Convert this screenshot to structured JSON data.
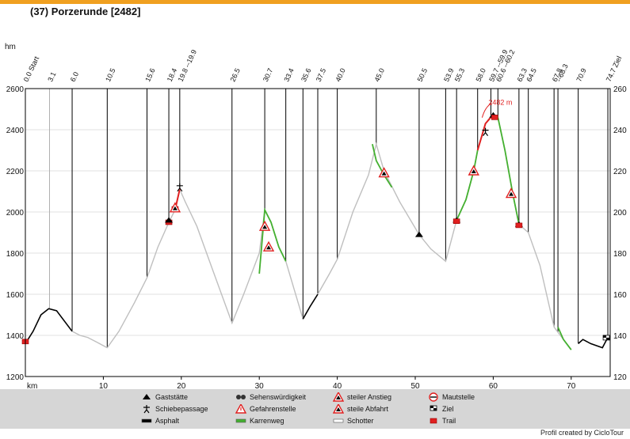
{
  "title": "(37) Porzerunde [2482]",
  "credit": "Profil created by CicloTour",
  "chart_data": {
    "type": "line",
    "title": "(37) Porzerunde [2482]",
    "ylabel": "hm",
    "xlabel": "km",
    "xlim": [
      0,
      75
    ],
    "ylim": [
      1200,
      2600
    ],
    "x_ticks": [
      "10",
      "20",
      "30",
      "40",
      "50",
      "60",
      "70"
    ],
    "y_ticks": [
      "1200",
      "1400",
      "1600",
      "1800",
      "2000",
      "2200",
      "2400",
      "2600"
    ],
    "y_ticks_right": [
      "120",
      "140",
      "160",
      "180",
      "200",
      "220",
      "240",
      "260"
    ],
    "km_marks": [
      "0.0 Start",
      "3.1",
      "6.0",
      "10.5",
      "15.6",
      "18.4",
      "19.8 --19.9",
      "26.5",
      "30.7",
      "33.4",
      "35.6",
      "37.5",
      "40.0",
      "45.0",
      "50.5",
      "53.9",
      "55.3",
      "58.0",
      "59.7 --59.9",
      "60.6 --60.2",
      "63.3",
      "64.5",
      "67.8",
      "--68.3",
      "70.9",
      "74.7 Ziel"
    ],
    "km_mark_positions": [
      0.0,
      3.1,
      6.0,
      10.5,
      15.6,
      18.4,
      19.8,
      26.5,
      30.7,
      33.4,
      35.6,
      37.5,
      40.0,
      45.0,
      50.5,
      53.9,
      55.3,
      58.0,
      59.7,
      60.6,
      63.3,
      64.5,
      67.8,
      68.3,
      70.9,
      74.7
    ],
    "summit_label": "2482 m",
    "summit": {
      "x": 60.0,
      "y": 2482
    },
    "profile": [
      [
        0,
        1360
      ],
      [
        1,
        1420
      ],
      [
        2,
        1500
      ],
      [
        3,
        1530
      ],
      [
        4,
        1520
      ],
      [
        5,
        1470
      ],
      [
        6,
        1420
      ],
      [
        7,
        1400
      ],
      [
        8,
        1390
      ],
      [
        9,
        1370
      ],
      [
        10.5,
        1340
      ],
      [
        12,
        1420
      ],
      [
        14,
        1560
      ],
      [
        15.6,
        1680
      ],
      [
        17,
        1830
      ],
      [
        18.4,
        1950
      ],
      [
        19.2,
        2010
      ],
      [
        19.8,
        2110
      ],
      [
        20.5,
        2050
      ],
      [
        22,
        1930
      ],
      [
        24,
        1720
      ],
      [
        26.5,
        1460
      ],
      [
        28,
        1600
      ],
      [
        30,
        1800
      ],
      [
        30.7,
        2010
      ],
      [
        31.5,
        1950
      ],
      [
        32.5,
        1830
      ],
      [
        33.4,
        1760
      ],
      [
        34.5,
        1620
      ],
      [
        35.6,
        1480
      ],
      [
        36.5,
        1540
      ],
      [
        37.5,
        1600
      ],
      [
        39,
        1700
      ],
      [
        40,
        1770
      ],
      [
        42,
        2000
      ],
      [
        44,
        2180
      ],
      [
        45,
        2330
      ],
      [
        46,
        2200
      ],
      [
        48,
        2050
      ],
      [
        50.5,
        1890
      ],
      [
        52,
        1820
      ],
      [
        53.9,
        1760
      ],
      [
        55.3,
        1960
      ],
      [
        56.5,
        2060
      ],
      [
        57.5,
        2200
      ],
      [
        58,
        2300
      ],
      [
        59,
        2430
      ],
      [
        60,
        2482
      ],
      [
        60.6,
        2460
      ],
      [
        61.5,
        2300
      ],
      [
        62.5,
        2090
      ],
      [
        63.3,
        1940
      ],
      [
        64.5,
        1900
      ],
      [
        66,
        1740
      ],
      [
        67.8,
        1440
      ],
      [
        69,
        1380
      ],
      [
        70,
        1330
      ],
      [
        70.9,
        1360
      ],
      [
        71.5,
        1380
      ],
      [
        72.5,
        1360
      ],
      [
        74,
        1340
      ],
      [
        74.7,
        1390
      ]
    ],
    "green_segments": [
      [
        [
          30,
          1700
        ],
        [
          30.7,
          2010
        ],
        [
          31.5,
          1950
        ],
        [
          32.5,
          1830
        ],
        [
          33.4,
          1760
        ]
      ],
      [
        [
          44.5,
          2330
        ],
        [
          45,
          2250
        ],
        [
          46,
          2180
        ],
        [
          47,
          2120
        ]
      ],
      [
        [
          55.3,
          1960
        ],
        [
          56.5,
          2060
        ],
        [
          57.5,
          2200
        ],
        [
          58,
          2300
        ]
      ],
      [
        [
          60.6,
          2460
        ],
        [
          61.5,
          2300
        ],
        [
          62.5,
          2090
        ],
        [
          63.3,
          1940
        ]
      ],
      [
        [
          68.3,
          1440
        ],
        [
          69,
          1380
        ],
        [
          70,
          1330
        ]
      ]
    ],
    "red_segments": [
      [
        [
          19.2,
          2010
        ],
        [
          19.8,
          2110
        ]
      ],
      [
        [
          58,
          2300
        ],
        [
          59,
          2430
        ],
        [
          59.7,
          2460
        ]
      ]
    ],
    "markers": [
      {
        "x": 0,
        "y": 1370,
        "kind": "trail"
      },
      {
        "x": 18.4,
        "y": 1950,
        "kind": "trail"
      },
      {
        "x": 18.4,
        "y": 1960,
        "kind": "rest"
      },
      {
        "x": 19.2,
        "y": 2015,
        "kind": "trail"
      },
      {
        "x": 19.2,
        "y": 2020,
        "kind": "steep"
      },
      {
        "x": 19.8,
        "y": 2120,
        "kind": "push"
      },
      {
        "x": 30.7,
        "y": 1930,
        "kind": "steep"
      },
      {
        "x": 31.2,
        "y": 1830,
        "kind": "descent"
      },
      {
        "x": 46,
        "y": 2190,
        "kind": "steep"
      },
      {
        "x": 50.5,
        "y": 1890,
        "kind": "rest"
      },
      {
        "x": 55.3,
        "y": 1960,
        "kind": "rest"
      },
      {
        "x": 55.3,
        "y": 1955,
        "kind": "trail"
      },
      {
        "x": 57.5,
        "y": 2200,
        "kind": "steep"
      },
      {
        "x": 59,
        "y": 2390,
        "kind": "push"
      },
      {
        "x": 60,
        "y": 2470,
        "kind": "rest"
      },
      {
        "x": 60.2,
        "y": 2460,
        "kind": "trail"
      },
      {
        "x": 62.3,
        "y": 2090,
        "kind": "descent"
      },
      {
        "x": 63.3,
        "y": 1940,
        "kind": "rest"
      },
      {
        "x": 63.3,
        "y": 1935,
        "kind": "trail"
      },
      {
        "x": 74.5,
        "y": 1385,
        "kind": "finish"
      }
    ],
    "legend": [
      {
        "label": "Gaststätte",
        "kind": "rest"
      },
      {
        "label": "Schiebepassage",
        "kind": "push"
      },
      {
        "label": "Asphalt",
        "kind": "asphalt"
      },
      {
        "label": "Sehenswürdigkeit",
        "kind": "sight"
      },
      {
        "label": "Gefahrenstelle",
        "kind": "danger"
      },
      {
        "label": "Karrenweg",
        "kind": "cart"
      },
      {
        "label": "steiler Anstieg",
        "kind": "steep"
      },
      {
        "label": "steile Abfahrt",
        "kind": "descent"
      },
      {
        "label": "Schotter",
        "kind": "gravel"
      },
      {
        "label": "Mautstelle",
        "kind": "toll"
      },
      {
        "label": "Ziel",
        "kind": "finish"
      },
      {
        "label": "Trail",
        "kind": "trail"
      }
    ],
    "colors": {
      "asphalt": "#000000",
      "gravel": "#bfbfbf",
      "cart": "#44b030",
      "trail": "#e02020",
      "frame": "#000000"
    }
  }
}
